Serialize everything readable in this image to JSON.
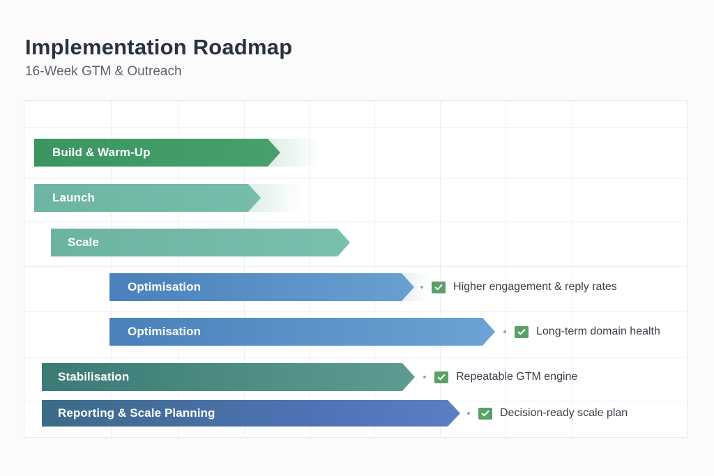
{
  "header": {
    "title": "Implementation Roadmap",
    "subtitle": "16-Week GTM & Outreach"
  },
  "colors": {
    "green": "#3f9a63",
    "teal": "#6fb8a6",
    "blue": "#4f88c0",
    "dark_teal": "#3d7f78",
    "indigo": "#4a6fb0",
    "check": "#5aa067"
  },
  "phases": [
    {
      "label": "Build & Warm-Up",
      "outcome": ""
    },
    {
      "label": "Launch",
      "outcome": ""
    },
    {
      "label": "Scale",
      "outcome": ""
    },
    {
      "label": "Optimisation",
      "outcome": "Higher engagement & reply rates",
      "check_icon": "checkmark-icon"
    },
    {
      "label": "Optimisation",
      "outcome": "Long-term domain health",
      "check_icon": "checkmark-icon"
    },
    {
      "label": "Stabilisation",
      "outcome": "Repeatable GTM engine",
      "check_icon": "checkmark-icon"
    },
    {
      "label": "Reporting & Scale Planning",
      "outcome": "Decision-ready scale plan",
      "check_icon": "checkmark-icon"
    }
  ]
}
